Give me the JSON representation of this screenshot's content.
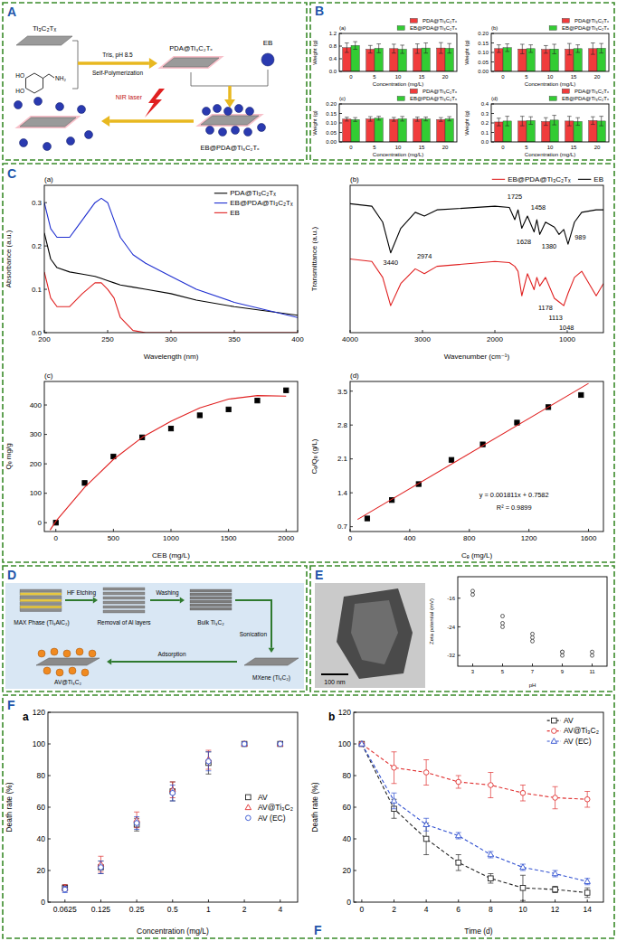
{
  "panel_letters": [
    "A",
    "B",
    "C",
    "D",
    "E",
    "F",
    "F"
  ],
  "diagram_A": {
    "start": "Ti₃C₂Tₓ",
    "monomer_groups": [
      "HO",
      "HO",
      "NH₂"
    ],
    "conditions": "Tris, pH 8.5",
    "process": "Self-Polymerization",
    "product": "PDA@Ti₃C₂Tₓ",
    "dye": "EB",
    "trigger": "NIR laser",
    "loaded": "EB@PDA@Ti₃C₂Tₓ"
  },
  "diagram_D": {
    "max_phase": "MAX Phase (Ti₃AlC₂)",
    "etching": "HF Etching",
    "removal": "Removal of Al layers",
    "washing": "Washing",
    "bulk": "Bulk Ti₃C₂",
    "sonication": "Sonication",
    "mxene": "MXene (Ti₃C₂)",
    "adsorption": "Adsorption",
    "product": "AV@Ti₃C₂"
  },
  "image_E": {
    "scale_bar": "100 nm"
  },
  "chart_data": [
    {
      "type": "bar",
      "title": "(a)",
      "x_label": "Concentration (mg/L)",
      "y_label": "Weight (g)",
      "categories": [
        "0",
        "5",
        "10",
        "15",
        "20"
      ],
      "ylim": [
        0,
        1.2
      ],
      "yticks": [
        {
          "value": 0,
          "label": "0.0"
        },
        0.4,
        0.8,
        1.2
      ],
      "legend": "top",
      "series": [
        {
          "name": "PDA@Ti₃C₂Tₓ",
          "color": "#f03c3c",
          "values": [
            0.75,
            0.7,
            0.72,
            0.72,
            0.74
          ],
          "errors": [
            0.15,
            0.12,
            0.14,
            0.15,
            0.17
          ]
        },
        {
          "name": "EB@PDA@Ti₃C₂Tₓ",
          "color": "#33cc33",
          "values": [
            0.82,
            0.73,
            0.7,
            0.74,
            0.73
          ],
          "errors": [
            0.12,
            0.14,
            0.13,
            0.16,
            0.15
          ]
        }
      ]
    },
    {
      "type": "bar",
      "title": "(b)",
      "x_label": "Concentration (mg/L)",
      "y_label": "Weight (g)",
      "categories": [
        "0",
        "5",
        "10",
        "15",
        "20"
      ],
      "ylim": [
        0,
        0.2
      ],
      "yticks": [
        {
          "value": 0,
          "label": "0.00"
        },
        0.05,
        {
          "value": 0.1,
          "label": "0.10"
        },
        0.15,
        {
          "value": 0.2,
          "label": "0.20"
        }
      ],
      "legend": "top",
      "series": [
        {
          "name": "PDA@Ti₃C₂Tₓ",
          "color": "#f03c3c",
          "values": [
            0.12,
            0.118,
            0.116,
            0.117,
            0.12
          ],
          "errors": [
            0.02,
            0.025,
            0.02,
            0.03,
            0.03
          ]
        },
        {
          "name": "EB@PDA@Ti₃C₂Tₓ",
          "color": "#33cc33",
          "values": [
            0.125,
            0.12,
            0.118,
            0.12,
            0.122
          ],
          "errors": [
            0.02,
            0.02,
            0.025,
            0.02,
            0.025
          ]
        }
      ]
    },
    {
      "type": "bar",
      "title": "(c)",
      "x_label": "Concentration (mg/L)",
      "y_label": "Weight (g)",
      "categories": [
        "0",
        "5",
        "10",
        "15",
        "20"
      ],
      "ylim": [
        0,
        0.2
      ],
      "yticks": [
        {
          "value": 0,
          "label": "0.00"
        },
        0.05,
        {
          "value": 0.1,
          "label": "0.10"
        },
        0.15,
        {
          "value": 0.2,
          "label": "0.20"
        }
      ],
      "legend": "top",
      "series": [
        {
          "name": "PDA@Ti₃C₂Tₓ",
          "color": "#f03c3c",
          "values": [
            0.12,
            0.121,
            0.119,
            0.12,
            0.118
          ],
          "errors": [
            0.01,
            0.012,
            0.01,
            0.011,
            0.01
          ]
        },
        {
          "name": "EB@PDA@Ti₃C₂Tₓ",
          "color": "#33cc33",
          "values": [
            0.118,
            0.125,
            0.122,
            0.121,
            0.122
          ],
          "errors": [
            0.01,
            0.01,
            0.012,
            0.01,
            0.011
          ]
        }
      ]
    },
    {
      "type": "bar",
      "title": "(d)",
      "x_label": "Concentration (mg/L)",
      "y_label": "Weight (g)",
      "categories": [
        "0",
        "5",
        "10",
        "15",
        "20"
      ],
      "ylim": [
        0,
        0.4
      ],
      "yticks": [
        {
          "value": 0,
          "label": "0.0"
        },
        0.1,
        0.2,
        0.3,
        0.4
      ],
      "legend": "top",
      "series": [
        {
          "name": "PDA@Ti₃C₂Tₓ",
          "color": "#f03c3c",
          "values": [
            0.21,
            0.22,
            0.215,
            0.22,
            0.225
          ],
          "errors": [
            0.04,
            0.05,
            0.04,
            0.05,
            0.04
          ]
        },
        {
          "name": "EB@PDA@Ti₃C₂Tₓ",
          "color": "#33cc33",
          "values": [
            0.22,
            0.225,
            0.23,
            0.215,
            0.22
          ],
          "errors": [
            0.05,
            0.04,
            0.05,
            0.04,
            0.05
          ]
        }
      ]
    },
    {
      "type": "line",
      "title": "(a)",
      "x_label": "Wavelength (nm)",
      "y_label": "Absorbance (a.u.)",
      "x": [
        200,
        205,
        210,
        220,
        230,
        240,
        245,
        250,
        255,
        260,
        270,
        280,
        300,
        320,
        350,
        400
      ],
      "xlim": [
        200,
        400
      ],
      "xticks": [
        200,
        250,
        300,
        350,
        400
      ],
      "ylim": [
        0,
        0.34
      ],
      "yticks": [
        {
          "value": 0,
          "label": "0.0"
        },
        0.1,
        0.2,
        0.3
      ],
      "legend": "upper right",
      "series": [
        {
          "name": "PDA@Ti₃C₂Tₓ",
          "color": "#000000",
          "values": [
            0.23,
            0.17,
            0.15,
            0.14,
            0.135,
            0.13,
            0.125,
            0.12,
            0.115,
            0.11,
            0.105,
            0.1,
            0.09,
            0.075,
            0.06,
            0.04
          ]
        },
        {
          "name": "EB@PDA@Ti₃C₂Tₓ",
          "color": "#1f2fd0",
          "values": [
            0.3,
            0.24,
            0.22,
            0.22,
            0.26,
            0.3,
            0.31,
            0.3,
            0.26,
            0.22,
            0.18,
            0.16,
            0.13,
            0.1,
            0.07,
            0.035
          ]
        },
        {
          "name": "EB",
          "color": "#e02020",
          "values": [
            0.14,
            0.08,
            0.06,
            0.06,
            0.09,
            0.115,
            0.115,
            0.1,
            0.08,
            0.035,
            0.005,
            0,
            0,
            0,
            0,
            0
          ]
        }
      ]
    },
    {
      "type": "line",
      "title": "(b)",
      "x_label": "Wavenumber (cm⁻¹)",
      "y_label": "Transmittance (a.u.)",
      "x": [
        4000,
        3700,
        3550,
        3440,
        3300,
        3100,
        2974,
        2800,
        2000,
        1800,
        1725,
        1680,
        1628,
        1550,
        1458,
        1420,
        1380,
        1300,
        1178,
        1113,
        1048,
        989,
        900,
        800,
        600,
        500
      ],
      "xlim": [
        4000,
        500
      ],
      "xticks": [
        4000,
        3000,
        2000,
        1000
      ],
      "ylim": [
        -10,
        110
      ],
      "tick_labels": "x",
      "legend": "top",
      "series": [
        {
          "name": "EB@PDA@Ti₃C₂Tₓ",
          "color": "#e02020",
          "values": [
            50,
            48,
            35,
            12,
            30,
            42,
            38,
            44,
            48,
            47,
            44,
            40,
            20,
            38,
            25,
            35,
            28,
            35,
            18,
            15,
            12,
            22,
            35,
            40,
            20,
            30
          ]
        },
        {
          "name": "EB",
          "color": "#000000",
          "values": [
            95,
            93,
            80,
            55,
            75,
            88,
            85,
            90,
            93,
            92,
            82,
            90,
            75,
            85,
            72,
            82,
            70,
            80,
            76,
            70,
            74,
            62,
            80,
            88,
            90,
            90
          ]
        }
      ],
      "annotations": [
        {
          "text": "1725",
          "x": 1725,
          "y": 101
        },
        {
          "text": "1628",
          "x": 1600,
          "y": 64
        },
        {
          "text": "1458",
          "x": 1400,
          "y": 92
        },
        {
          "text": "1380",
          "x": 1250,
          "y": 60
        },
        {
          "text": "989",
          "x": 820,
          "y": 68
        },
        {
          "text": "3440",
          "x": 3440,
          "y": 47
        },
        {
          "text": "2974",
          "x": 2974,
          "y": 52
        },
        {
          "text": "1178",
          "x": 1300,
          "y": 10
        },
        {
          "text": "1113",
          "x": 1160,
          "y": 2
        },
        {
          "text": "1048",
          "x": 1010,
          "y": -6
        }
      ]
    },
    {
      "type": "scatter",
      "title": "(c)",
      "x_label": "CEB (mg/L)",
      "y_label": "Qₑ mg/g",
      "xlim": [
        -100,
        2100
      ],
      "xticks": [
        0,
        500,
        1000,
        1500,
        2000
      ],
      "ylim": [
        -30,
        480
      ],
      "yticks": [
        0,
        100,
        200,
        300,
        400
      ],
      "series": [
        {
          "type": "scatter",
          "color": "#000000",
          "marker": "square",
          "x": [
            0,
            250,
            500,
            750,
            1000,
            1250,
            1500,
            1750,
            2000
          ],
          "values": [
            0,
            135,
            225,
            290,
            320,
            365,
            385,
            415,
            450
          ]
        },
        {
          "type": "line",
          "color": "#e02020",
          "x": [
            -50,
            0,
            250,
            500,
            750,
            1000,
            1250,
            1500,
            1750,
            2000
          ],
          "values": [
            -25,
            5,
            120,
            215,
            290,
            345,
            390,
            420,
            432,
            430
          ]
        }
      ]
    },
    {
      "type": "scatter",
      "title": "(d)",
      "x_label": "Cₑ (mg/L)",
      "y_label": "Cₑ/Qₑ (g/L)",
      "xlim": [
        0,
        1700
      ],
      "xticks": [
        0,
        400,
        800,
        1200,
        1600
      ],
      "ylim": [
        0.6,
        3.7
      ],
      "yticks": [
        0.7,
        1.4,
        2.1,
        2.8,
        3.5
      ],
      "series": [
        {
          "type": "scatter",
          "color": "#000000",
          "marker": "square",
          "x": [
            115,
            280,
            460,
            680,
            890,
            1120,
            1330,
            1550
          ],
          "values": [
            0.87,
            1.25,
            1.58,
            2.08,
            2.4,
            2.85,
            3.17,
            3.42
          ]
        },
        {
          "type": "line",
          "color": "#e02020",
          "x": [
            50,
            1600
          ],
          "values": [
            0.85,
            3.66
          ]
        }
      ],
      "annotations": [
        {
          "text": "y = 0.001811x + 0.7582",
          "x": 1100,
          "y": 1.35
        },
        {
          "text": "R² = 0.9899",
          "x": 1100,
          "y": 1.1
        }
      ]
    },
    {
      "type": "scatter",
      "x_label": "pH",
      "y_label": "Zeta potential (mV)",
      "xlim": [
        2,
        12
      ],
      "xticks": [
        3,
        5,
        7,
        9,
        11
      ],
      "ylim": [
        -35,
        -10
      ],
      "yticks": [
        -32,
        -24,
        -16
      ],
      "series": [
        {
          "color": "#444444",
          "marker": "open-circle",
          "x": [
            3,
            3,
            5,
            5,
            5,
            7,
            7,
            7,
            9,
            9,
            9,
            11,
            11
          ],
          "values": [
            -14,
            -15,
            -21,
            -23,
            -24,
            -26,
            -27,
            -28,
            -31,
            -31,
            -32,
            -31,
            -32
          ]
        }
      ]
    },
    {
      "type": "scatter",
      "title": "a",
      "log": "x",
      "x_label": "Concentration (mg/L)",
      "y_label": "Death rate (%)",
      "x": [
        0.0625,
        0.125,
        0.25,
        0.5,
        1,
        2,
        4
      ],
      "xlim": [
        0.045,
        5.6
      ],
      "xticks": [
        0.0625,
        0.125,
        0.25,
        0.5,
        1,
        2,
        4
      ],
      "ylim": [
        0,
        120
      ],
      "yticks": [
        0,
        20,
        40,
        60,
        80,
        100,
        120
      ],
      "legend": "center right",
      "series": [
        {
          "name": "AV",
          "color": "#222222",
          "marker": "open-square",
          "values": [
            9,
            22,
            49,
            70,
            88,
            100,
            100
          ],
          "errors": [
            2,
            4,
            4,
            6,
            7,
            1,
            0
          ]
        },
        {
          "name": "AV@Ti₃C₂",
          "color": "#e03030",
          "marker": "open-triangle",
          "values": [
            9,
            24,
            52,
            71,
            90,
            100,
            100
          ],
          "errors": [
            2,
            5,
            5,
            5,
            6,
            1,
            0
          ]
        },
        {
          "name": "AV (EC)",
          "color": "#3050d0",
          "marker": "open-circle",
          "values": [
            8,
            22,
            50,
            69,
            89,
            100,
            100
          ],
          "errors": [
            2,
            4,
            4,
            5,
            6,
            1,
            0
          ]
        }
      ]
    },
    {
      "type": "line",
      "title": "b",
      "x_label": "Time (d)",
      "y_label": "Death rate (%)",
      "x": [
        0,
        2,
        4,
        6,
        8,
        10,
        12,
        14
      ],
      "xlim": [
        -0.5,
        15
      ],
      "xticks": [
        0,
        2,
        4,
        6,
        8,
        10,
        12,
        14
      ],
      "ylim": [
        0,
        120
      ],
      "yticks": [
        0,
        20,
        40,
        60,
        80,
        100,
        120
      ],
      "legend": "upper right",
      "series": [
        {
          "name": "AV",
          "color": "#222222",
          "marker": "open-square",
          "line_style": "dashed",
          "values": [
            100,
            59,
            40,
            25,
            15,
            9,
            8,
            6
          ],
          "errors": [
            0,
            6,
            10,
            5,
            3,
            8,
            2,
            3
          ]
        },
        {
          "name": "AV@Ti₃C₂",
          "color": "#e03030",
          "marker": "open-circle",
          "line_style": "dashed",
          "values": [
            100,
            85,
            82,
            76,
            74,
            69,
            66,
            65
          ],
          "errors": [
            0,
            10,
            8,
            4,
            8,
            5,
            7,
            5
          ]
        },
        {
          "name": "AV (EC)",
          "color": "#3050d0",
          "marker": "open-triangle",
          "line_style": "dashed",
          "values": [
            100,
            64,
            49,
            42,
            30,
            22,
            18,
            13
          ],
          "errors": [
            0,
            5,
            4,
            2,
            2,
            2,
            2,
            2
          ]
        }
      ]
    }
  ]
}
